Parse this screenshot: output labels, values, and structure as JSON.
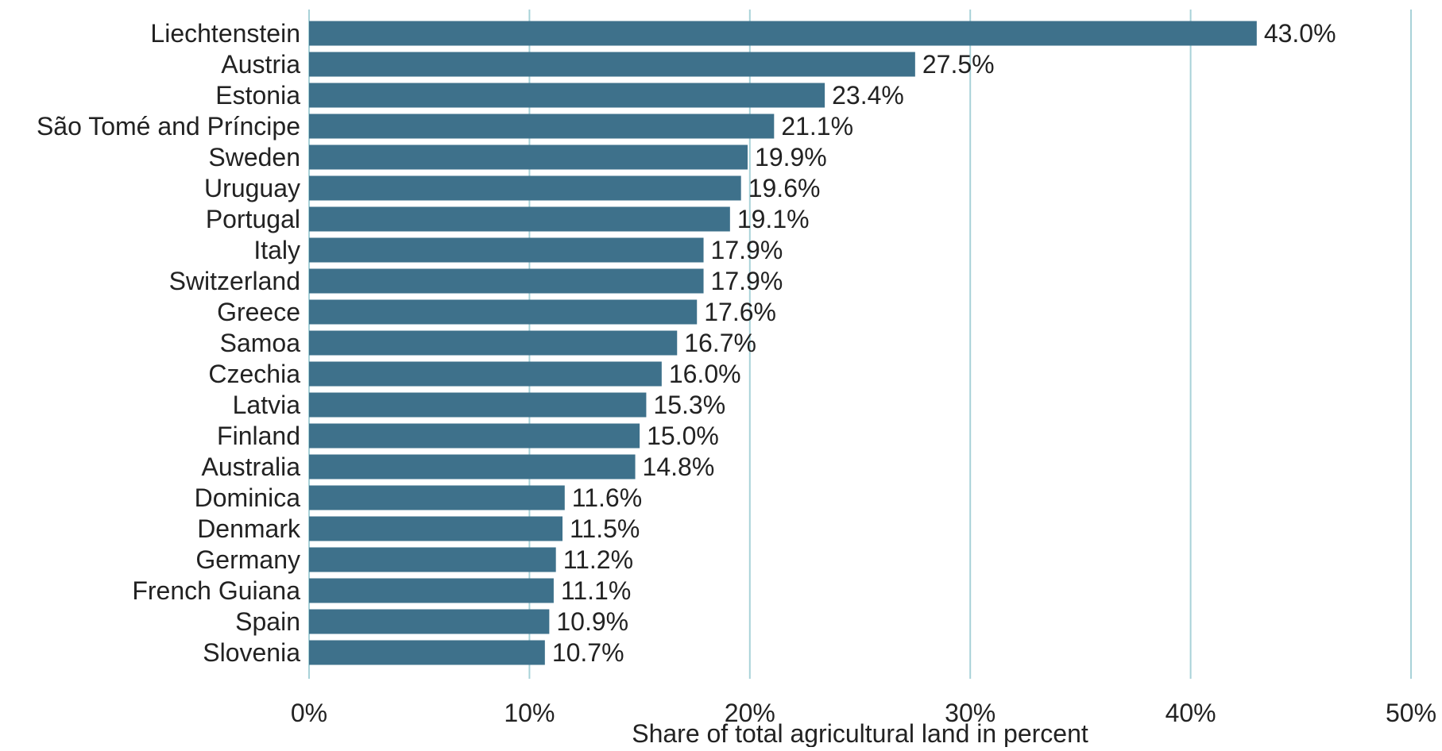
{
  "chart_data": {
    "type": "bar",
    "orientation": "horizontal",
    "xlabel": "Share of total agricultural land in percent",
    "ylabel": "",
    "xlim": [
      0,
      50
    ],
    "x_ticks": [
      0,
      10,
      20,
      30,
      40,
      50
    ],
    "x_tick_labels": [
      "0%",
      "10%",
      "20%",
      "30%",
      "40%",
      "50%"
    ],
    "grid": "vertical",
    "categories": [
      "Liechtenstein",
      "Austria",
      "Estonia",
      "São Tomé and Príncipe",
      "Sweden",
      "Uruguay",
      "Portugal",
      "Italy",
      "Switzerland",
      "Greece",
      "Samoa",
      "Czechia",
      "Latvia",
      "Finland",
      "Australia",
      "Dominica",
      "Denmark",
      "Germany",
      "French Guiana",
      "Spain",
      "Slovenia"
    ],
    "values": [
      43.0,
      27.5,
      23.4,
      21.1,
      19.9,
      19.6,
      19.1,
      17.9,
      17.9,
      17.6,
      16.7,
      16.0,
      15.3,
      15.0,
      14.8,
      11.6,
      11.5,
      11.2,
      11.1,
      10.9,
      10.7
    ],
    "value_labels": [
      "43.0%",
      "27.5%",
      "23.4%",
      "21.1%",
      "19.9%",
      "19.6%",
      "19.1%",
      "17.9%",
      "17.9%",
      "17.6%",
      "16.7%",
      "16.0%",
      "15.3%",
      "15.0%",
      "14.8%",
      "11.6%",
      "11.5%",
      "11.2%",
      "11.1%",
      "10.9%",
      "10.7%"
    ],
    "colors": {
      "bar": "#3e718b",
      "grid": "#a8d2d8",
      "text": "#222222"
    }
  }
}
